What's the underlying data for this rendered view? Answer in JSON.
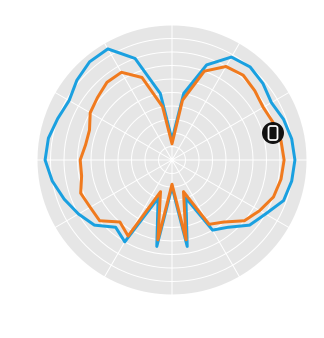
{
  "chart_data": {
    "type": "polar",
    "theta": [
      0,
      10,
      20,
      30,
      40,
      50,
      60,
      70,
      80,
      90,
      100,
      110,
      120,
      130,
      140,
      150,
      160,
      170,
      180,
      190,
      200,
      210,
      220,
      230,
      240,
      250,
      260,
      270,
      280,
      290,
      300,
      310,
      320,
      330,
      340,
      350
    ],
    "rlim": [
      0,
      10
    ],
    "rticks": [
      1,
      2,
      3,
      4,
      5,
      6,
      7,
      8,
      9,
      10
    ],
    "thetaticks": [
      0,
      30,
      60,
      90,
      120,
      150,
      180,
      210,
      240,
      270,
      300,
      330
    ],
    "grid": true,
    "series": [
      {
        "color": "#1aa0e0",
        "values": [
          1.5,
          5,
          7.5,
          8.8,
          9.0,
          8.8,
          8.5,
          8.8,
          9.0,
          9.1,
          9.0,
          8.8,
          8.0,
          7.5,
          6.5,
          6.0,
          3.0,
          6.5,
          2.0,
          6.5,
          3.0,
          7.0,
          6.5,
          7.5,
          8.0,
          8.5,
          9.0,
          9.4,
          9.3,
          9.0,
          8.8,
          9.2,
          9.5,
          9.5,
          8.0,
          5.0
        ]
      },
      {
        "color": "#f07a1e",
        "values": [
          1.2,
          4.5,
          7,
          8,
          8.2,
          8,
          7.8,
          8,
          8.2,
          8.3,
          8.2,
          8,
          7.5,
          7,
          6,
          5.5,
          2.5,
          6,
          1.8,
          6,
          2.5,
          6.5,
          6,
          7,
          7,
          7.2,
          6.8,
          6.8,
          6.5,
          6.5,
          7,
          7.2,
          7.5,
          7.5,
          6.5,
          4
        ]
      }
    ]
  }
}
